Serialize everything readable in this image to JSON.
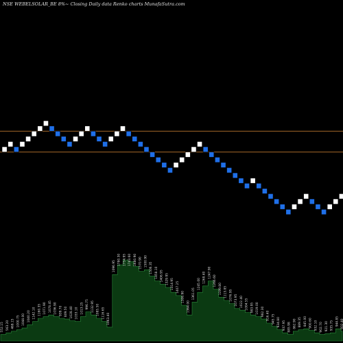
{
  "title": "NSE WEBELSOLAR_BE 8%~ Closing Daily data Renko charts MunafaSutra.com",
  "colors": {
    "background": "#000000",
    "brick_up": "#ffffff",
    "brick_down": "#1f6fe8",
    "brick_border": "#000000",
    "reference_line": "#a86a2a",
    "volume_fill": "#0b3a12",
    "volume_stroke": "#2a8a3a",
    "volume_label": "#d8d8d8"
  },
  "chart_data": {
    "type": "renko",
    "reference_lines": [
      1,
      5
    ],
    "bricks": [
      {
        "dir": "up",
        "level": 2
      },
      {
        "dir": "up",
        "level": 3
      },
      {
        "dir": "down",
        "level": 2
      },
      {
        "dir": "up",
        "level": 3
      },
      {
        "dir": "up",
        "level": 4
      },
      {
        "dir": "up",
        "level": 5
      },
      {
        "dir": "up",
        "level": 6
      },
      {
        "dir": "up",
        "level": 7
      },
      {
        "dir": "down",
        "level": 6
      },
      {
        "dir": "down",
        "level": 5
      },
      {
        "dir": "down",
        "level": 4
      },
      {
        "dir": "down",
        "level": 3
      },
      {
        "dir": "up",
        "level": 4
      },
      {
        "dir": "up",
        "level": 5
      },
      {
        "dir": "up",
        "level": 6
      },
      {
        "dir": "down",
        "level": 5
      },
      {
        "dir": "down",
        "level": 4
      },
      {
        "dir": "down",
        "level": 3
      },
      {
        "dir": "up",
        "level": 4
      },
      {
        "dir": "up",
        "level": 5
      },
      {
        "dir": "up",
        "level": 6
      },
      {
        "dir": "down",
        "level": 5
      },
      {
        "dir": "down",
        "level": 4
      },
      {
        "dir": "down",
        "level": 3
      },
      {
        "dir": "down",
        "level": 2
      },
      {
        "dir": "down",
        "level": 1
      },
      {
        "dir": "down",
        "level": 0
      },
      {
        "dir": "down",
        "level": -1
      },
      {
        "dir": "down",
        "level": -2
      },
      {
        "dir": "up",
        "level": -1
      },
      {
        "dir": "up",
        "level": 0
      },
      {
        "dir": "up",
        "level": 1
      },
      {
        "dir": "up",
        "level": 2
      },
      {
        "dir": "up",
        "level": 3
      },
      {
        "dir": "down",
        "level": 2
      },
      {
        "dir": "down",
        "level": 1
      },
      {
        "dir": "down",
        "level": 0
      },
      {
        "dir": "down",
        "level": -1
      },
      {
        "dir": "down",
        "level": -2
      },
      {
        "dir": "down",
        "level": -3
      },
      {
        "dir": "down",
        "level": -4
      },
      {
        "dir": "down",
        "level": -5
      },
      {
        "dir": "up",
        "level": -4
      },
      {
        "dir": "down",
        "level": -5
      },
      {
        "dir": "down",
        "level": -6
      },
      {
        "dir": "down",
        "level": -7
      },
      {
        "dir": "down",
        "level": -8
      },
      {
        "dir": "down",
        "level": -9
      },
      {
        "dir": "down",
        "level": -10
      },
      {
        "dir": "up",
        "level": -9
      },
      {
        "dir": "up",
        "level": -8
      },
      {
        "dir": "up",
        "level": -7
      },
      {
        "dir": "down",
        "level": -8
      },
      {
        "dir": "down",
        "level": -9
      },
      {
        "dir": "down",
        "level": -10
      },
      {
        "dir": "up",
        "level": -9
      },
      {
        "dir": "up",
        "level": -8
      },
      {
        "dir": "up",
        "level": -7
      }
    ],
    "volume": {
      "values": [
        8,
        10,
        12,
        14,
        16,
        20,
        24,
        28,
        30,
        32,
        30,
        28,
        27,
        25,
        24,
        30,
        36,
        32,
        28,
        24,
        17,
        82,
        94,
        100,
        98,
        92,
        86,
        88,
        80,
        74,
        70,
        66,
        60,
        56,
        44,
        32,
        48,
        60,
        68,
        74,
        64,
        54,
        50,
        46,
        40,
        38,
        35,
        32,
        30,
        27,
        22,
        18,
        14,
        10,
        8,
        12,
        14,
        15,
        13,
        10,
        8,
        9,
        10,
        15,
        12
      ],
      "labels": [
        "552.15",
        "563.20",
        "468.15",
        "1000.75",
        "1044.00",
        "1040.20",
        "1142.10",
        "1160.35",
        "1071.90",
        "1078.45",
        "1036.90",
        "939.70",
        "809.50",
        "1028.40",
        "1033.10",
        "1013.25",
        "996.75",
        "1132.95",
        "1085.50",
        "1116.65",
        "1063.40",
        "1096.95",
        "1780.30",
        "1754.95",
        "1743.60",
        "1680.90",
        "1570.90",
        "1500.90",
        "1506.35",
        "1458.10",
        "1406.95",
        "1329.95",
        "1314.95",
        "1407.25",
        "1306.90",
        "1364.00",
        "1361.05",
        "1245.00",
        "1268.40",
        "1247.90",
        "1266.60",
        "1199.80",
        "1113.85",
        "1076.95",
        "1073.95",
        "1022.40",
        "1004.55",
        "983.95",
        "1019.00",
        "982.30",
        "916.40",
        "945.75",
        "934.80",
        "937.95",
        "885.98",
        "862.90",
        "889.35",
        "845.00",
        "900.60",
        "932.10",
        "902.70",
        "921.30",
        "935.75",
        "944.85",
        "932.40"
      ]
    }
  }
}
